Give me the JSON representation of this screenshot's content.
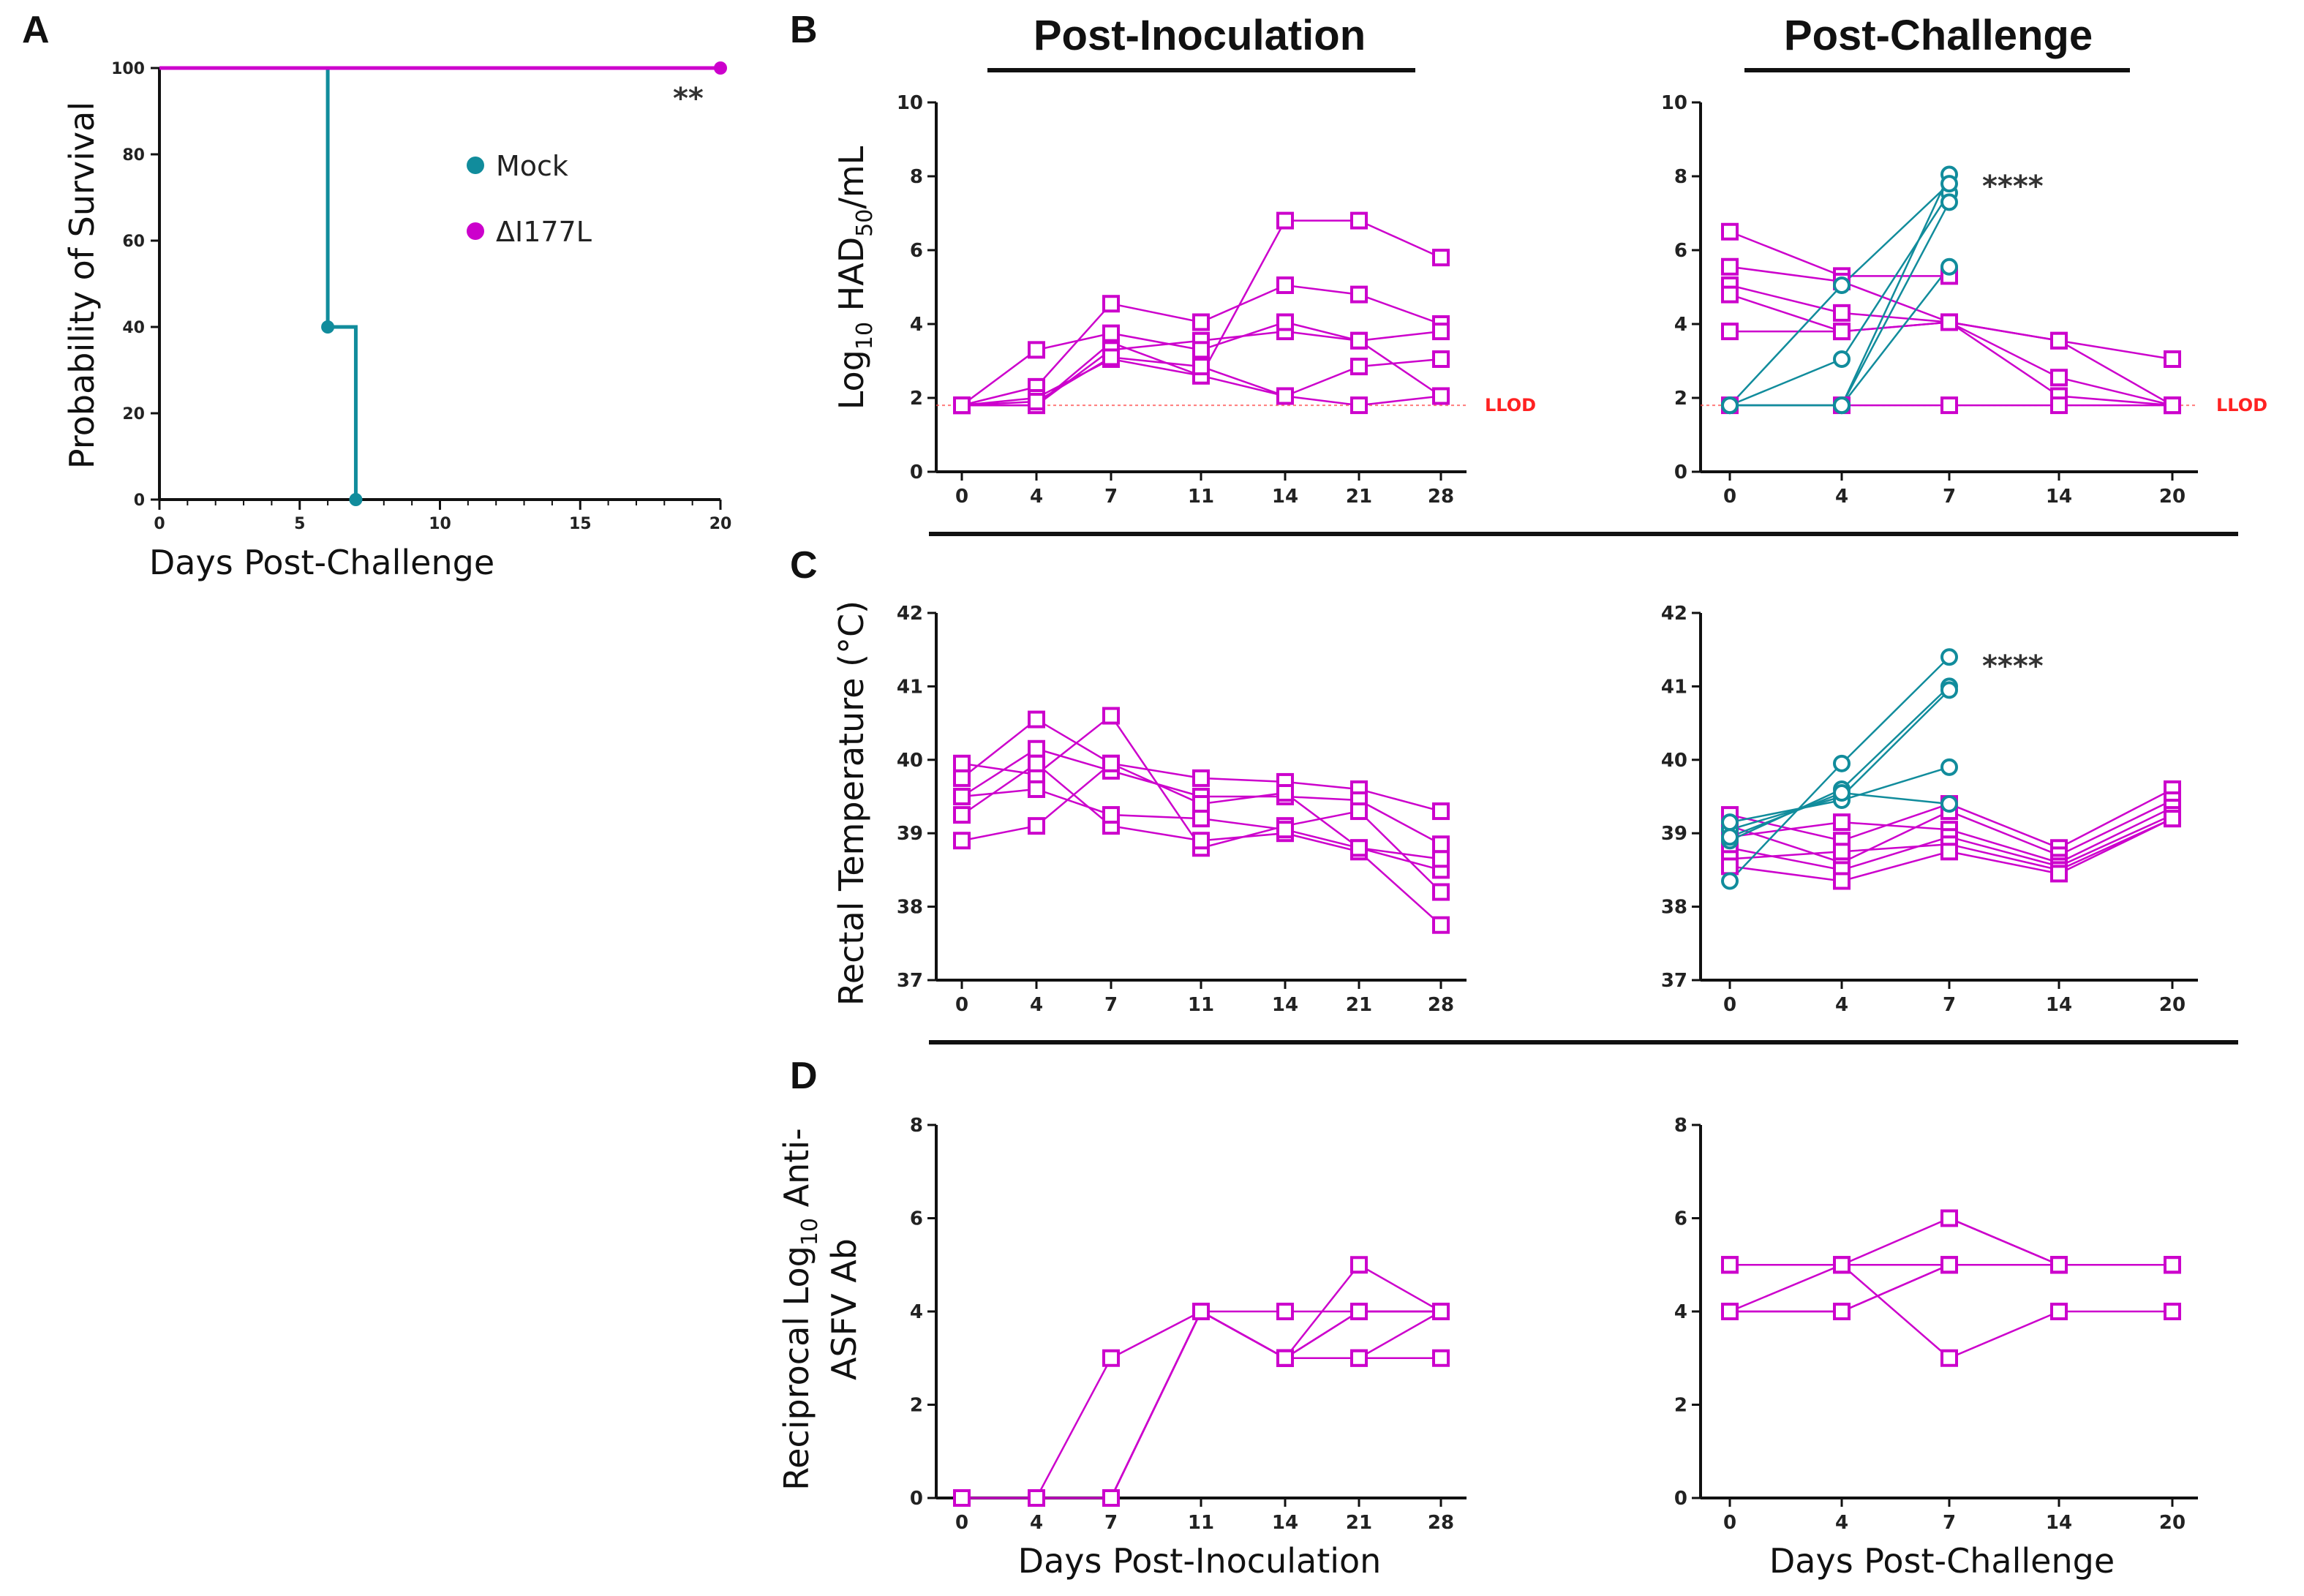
{
  "panel_letters": [
    "A",
    "B",
    "C",
    "D"
  ],
  "headers": {
    "left": "Post-Inoculation",
    "right": "Post-Challenge"
  },
  "colors": {
    "vaccine": "#cc00cc",
    "mock": "#118c9c",
    "llod": "#ff4444",
    "axis": "#111111"
  },
  "chart_data": [
    {
      "id": "A",
      "type": "line",
      "title": "",
      "xlabel": "Days Post-Challenge",
      "ylabel": "Probability of Survival",
      "xlim": [
        0,
        20
      ],
      "ylim": [
        0,
        100
      ],
      "xticks": [
        0,
        5,
        10,
        15,
        20
      ],
      "yticks": [
        0,
        20,
        40,
        60,
        80,
        100
      ],
      "legend": [
        {
          "label": "Mock",
          "color": "#118c9c"
        },
        {
          "label": "ΔI177L",
          "color": "#cc00cc"
        }
      ],
      "series": [
        {
          "name": "Mock",
          "color": "#118c9c",
          "step": true,
          "x": [
            0,
            6,
            6,
            7,
            7
          ],
          "y": [
            100,
            100,
            40,
            40,
            0
          ],
          "markers": [
            [
              6,
              40
            ],
            [
              7,
              0
            ]
          ]
        },
        {
          "name": "ΔI177L",
          "color": "#cc00cc",
          "step": true,
          "x": [
            0,
            20
          ],
          "y": [
            100,
            100
          ],
          "markers": [
            [
              20,
              100
            ]
          ]
        }
      ],
      "annotation": "**"
    },
    {
      "id": "B-left",
      "type": "line",
      "xlabel": "",
      "ylabel": "Log10 HAD50/mL",
      "categories": [
        "0",
        "4",
        "7",
        "11",
        "14",
        "21",
        "28"
      ],
      "ylim": [
        0,
        10
      ],
      "yticks": [
        0,
        2,
        4,
        6,
        8,
        10
      ],
      "llod": {
        "value": 1.8,
        "label": "LLOD"
      },
      "series": [
        {
          "group": "ΔI177L",
          "values": [
            1.8,
            2.3,
            4.55,
            4.05,
            5.05,
            4.8,
            4.0
          ]
        },
        {
          "group": "ΔI177L",
          "values": [
            1.8,
            1.8,
            3.5,
            2.6,
            6.8,
            6.8,
            5.8
          ]
        },
        {
          "group": "ΔI177L",
          "values": [
            1.8,
            1.8,
            3.3,
            3.55,
            3.8,
            3.55,
            3.8
          ]
        },
        {
          "group": "ΔI177L",
          "values": [
            1.8,
            3.3,
            3.75,
            3.3,
            4.05,
            3.55,
            2.05
          ]
        },
        {
          "group": "ΔI177L",
          "values": [
            1.8,
            2.0,
            3.05,
            2.6,
            2.05,
            1.8,
            2.05
          ]
        },
        {
          "group": "ΔI177L",
          "values": [
            1.8,
            1.9,
            3.1,
            2.85,
            2.05,
            2.85,
            3.05
          ]
        }
      ]
    },
    {
      "id": "B-right",
      "type": "line",
      "xlabel": "",
      "ylabel": "",
      "categories": [
        "0",
        "4",
        "7",
        "14",
        "20"
      ],
      "ylim": [
        0,
        10
      ],
      "yticks": [
        0,
        2,
        4,
        6,
        8,
        10
      ],
      "llod": {
        "value": 1.8,
        "label": "LLOD"
      },
      "annotation": "****",
      "series": [
        {
          "group": "ΔI177L",
          "values": [
            6.5,
            5.3,
            5.3,
            null,
            null
          ]
        },
        {
          "group": "ΔI177L",
          "values": [
            5.55,
            5.15,
            4.05,
            3.55,
            3.05
          ]
        },
        {
          "group": "ΔI177L",
          "values": [
            5.05,
            4.3,
            4.05,
            3.55,
            1.8
          ]
        },
        {
          "group": "ΔI177L",
          "values": [
            4.8,
            3.8,
            4.05,
            2.55,
            1.8
          ]
        },
        {
          "group": "ΔI177L",
          "values": [
            3.8,
            3.8,
            4.05,
            2.05,
            1.8
          ]
        },
        {
          "group": "ΔI177L",
          "values": [
            1.8,
            1.8,
            1.8,
            1.8,
            1.8
          ]
        },
        {
          "group": "Mock",
          "values": [
            1.8,
            1.8,
            8.05,
            null,
            null
          ]
        },
        {
          "group": "Mock",
          "values": [
            1.8,
            3.05,
            7.55,
            null,
            null
          ]
        },
        {
          "group": "Mock",
          "values": [
            1.8,
            1.8,
            7.3,
            null,
            null
          ]
        },
        {
          "group": "Mock",
          "values": [
            1.8,
            1.8,
            5.55,
            null,
            null
          ]
        },
        {
          "group": "Mock",
          "values": [
            1.8,
            5.05,
            7.8,
            null,
            null
          ]
        }
      ]
    },
    {
      "id": "C-left",
      "type": "line",
      "xlabel": "",
      "ylabel": "Rectal Temperature (°C)",
      "categories": [
        "0",
        "4",
        "7",
        "11",
        "14",
        "21",
        "28"
      ],
      "ylim": [
        37,
        42
      ],
      "yticks": [
        37,
        38,
        39,
        40,
        41,
        42
      ],
      "series": [
        {
          "group": "ΔI177L",
          "values": [
            39.75,
            40.55,
            39.95,
            39.75,
            39.7,
            39.6,
            39.3
          ]
        },
        {
          "group": "ΔI177L",
          "values": [
            39.5,
            40.15,
            39.85,
            39.5,
            39.5,
            39.45,
            38.85
          ]
        },
        {
          "group": "ΔI177L",
          "values": [
            39.95,
            39.8,
            40.6,
            38.8,
            39.1,
            39.3,
            38.2
          ]
        },
        {
          "group": "ΔI177L",
          "values": [
            38.9,
            39.1,
            39.95,
            39.4,
            39.55,
            38.8,
            38.5
          ]
        },
        {
          "group": "ΔI177L",
          "values": [
            39.25,
            39.95,
            39.1,
            38.9,
            39.0,
            38.75,
            37.75
          ]
        },
        {
          "group": "ΔI177L",
          "values": [
            39.5,
            39.6,
            39.25,
            39.2,
            39.05,
            38.8,
            38.65
          ]
        }
      ]
    },
    {
      "id": "C-right",
      "type": "line",
      "xlabel": "",
      "ylabel": "",
      "categories": [
        "0",
        "4",
        "7",
        "14",
        "20"
      ],
      "ylim": [
        37,
        42
      ],
      "yticks": [
        37,
        38,
        39,
        40,
        41,
        42
      ],
      "annotation": "****",
      "series": [
        {
          "group": "ΔI177L",
          "values": [
            39.25,
            38.9,
            39.4,
            38.8,
            39.6
          ]
        },
        {
          "group": "ΔI177L",
          "values": [
            39.1,
            38.6,
            39.3,
            38.7,
            39.45
          ]
        },
        {
          "group": "ΔI177L",
          "values": [
            38.95,
            39.15,
            39.05,
            38.6,
            39.35
          ]
        },
        {
          "group": "ΔI177L",
          "values": [
            38.8,
            38.5,
            38.95,
            38.55,
            39.25
          ]
        },
        {
          "group": "ΔI177L",
          "values": [
            38.65,
            38.75,
            38.85,
            38.5,
            39.2
          ]
        },
        {
          "group": "ΔI177L",
          "values": [
            38.55,
            38.35,
            38.75,
            38.45,
            39.2
          ]
        },
        {
          "group": "Mock",
          "values": [
            38.35,
            39.95,
            41.4,
            null,
            null
          ]
        },
        {
          "group": "Mock",
          "values": [
            38.9,
            39.6,
            41.0,
            null,
            null
          ]
        },
        {
          "group": "Mock",
          "values": [
            39.05,
            39.5,
            40.95,
            null,
            null
          ]
        },
        {
          "group": "Mock",
          "values": [
            39.15,
            39.45,
            39.9,
            null,
            null
          ]
        },
        {
          "group": "Mock",
          "values": [
            38.95,
            39.55,
            39.4,
            null,
            null
          ]
        }
      ]
    },
    {
      "id": "D-left",
      "type": "line",
      "xlabel": "Days Post-Inoculation",
      "ylabel": "Reciprocal Log10 Anti-ASFV Ab",
      "categories": [
        "0",
        "4",
        "7",
        "11",
        "14",
        "21",
        "28"
      ],
      "ylim": [
        0,
        8
      ],
      "yticks": [
        0,
        2,
        4,
        6,
        8
      ],
      "series": [
        {
          "group": "ΔI177L",
          "values": [
            0,
            0,
            3,
            4,
            4,
            4,
            4
          ]
        },
        {
          "group": "ΔI177L",
          "values": [
            0,
            0,
            0,
            4,
            3,
            5,
            4
          ]
        },
        {
          "group": "ΔI177L",
          "values": [
            0,
            0,
            0,
            4,
            3,
            4,
            4
          ]
        },
        {
          "group": "ΔI177L",
          "values": [
            0,
            0,
            0,
            4,
            3,
            3,
            3
          ]
        },
        {
          "group": "ΔI177L",
          "values": [
            0,
            0,
            0,
            4,
            3,
            4,
            4
          ]
        },
        {
          "group": "ΔI177L",
          "values": [
            0,
            0,
            0,
            4,
            3,
            3,
            4
          ]
        }
      ]
    },
    {
      "id": "D-right",
      "type": "line",
      "xlabel": "Days Post-Challenge",
      "ylabel": "",
      "categories": [
        "0",
        "4",
        "7",
        "14",
        "20"
      ],
      "ylim": [
        0,
        8
      ],
      "yticks": [
        0,
        2,
        4,
        6,
        8
      ],
      "series": [
        {
          "group": "ΔI177L",
          "values": [
            5,
            5,
            5,
            5,
            5
          ]
        },
        {
          "group": "ΔI177L",
          "values": [
            5,
            null,
            6,
            5,
            5
          ]
        },
        {
          "group": "ΔI177L",
          "values": [
            4,
            5,
            3,
            4,
            4
          ]
        },
        {
          "group": "ΔI177L",
          "values": [
            4,
            4,
            5,
            5,
            5
          ]
        },
        {
          "group": "ΔI177L",
          "values": [
            5,
            5,
            6,
            5,
            5
          ]
        },
        {
          "group": "ΔI177L",
          "values": [
            4,
            4,
            5,
            5,
            5
          ]
        }
      ]
    }
  ]
}
